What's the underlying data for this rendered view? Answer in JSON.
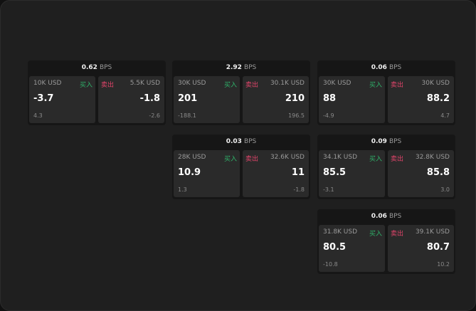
{
  "unit": "BPS",
  "labels": {
    "buy": "买入",
    "sell": "卖出"
  },
  "colors": {
    "buy": "#2fb36a",
    "sell": "#e0446a"
  },
  "cards": [
    {
      "spread": "0.62",
      "buy": {
        "size": "10K USD",
        "price": "-3.7",
        "change": "4.3"
      },
      "sell": {
        "size": "5.5K USD",
        "price": "-1.8",
        "change": "-2.6"
      }
    },
    {
      "spread": "2.92",
      "buy": {
        "size": "30K USD",
        "price": "201",
        "change": "-188.1"
      },
      "sell": {
        "size": "30.1K USD",
        "price": "210",
        "change": "196.5"
      }
    },
    {
      "spread": "0.06",
      "buy": {
        "size": "30K USD",
        "price": "88",
        "change": "-4.9"
      },
      "sell": {
        "size": "30K USD",
        "price": "88.2",
        "change": "4.7"
      }
    },
    {
      "spread": "0.03",
      "buy": {
        "size": "28K USD",
        "price": "10.9",
        "change": "1.3"
      },
      "sell": {
        "size": "32.6K USD",
        "price": "11",
        "change": "-1.8"
      }
    },
    {
      "spread": "0.09",
      "buy": {
        "size": "34.1K USD",
        "price": "85.5",
        "change": "-3.1"
      },
      "sell": {
        "size": "32.8K USD",
        "price": "85.8",
        "change": "3.0"
      }
    },
    {
      "spread": "0.06",
      "buy": {
        "size": "31.8K USD",
        "price": "80.5",
        "change": "-10.8"
      },
      "sell": {
        "size": "39.1K USD",
        "price": "80.7",
        "change": "10.2"
      }
    }
  ]
}
